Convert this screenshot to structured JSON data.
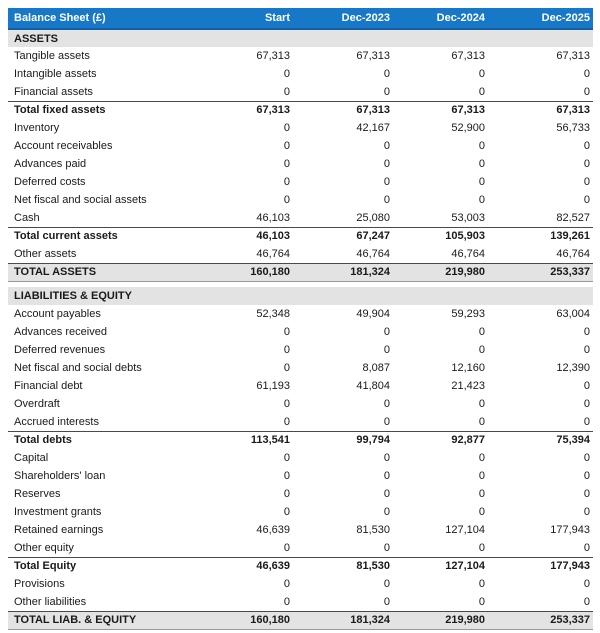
{
  "title": "Balance Sheet (£)",
  "columns": [
    "Start",
    "Dec-2023",
    "Dec-2024",
    "Dec-2025"
  ],
  "colors": {
    "header_bg": "#1878c8",
    "header_border": "#115fa5",
    "header_text": "#ffffff",
    "band_bg": "#e3e3e3",
    "text": "#1a1a1a",
    "total_border": "#4a4a4a"
  },
  "sections": [
    {
      "title": "ASSETS",
      "rows": [
        {
          "label": "Tangible assets",
          "style": "normal",
          "values": [
            "67,313",
            "67,313",
            "67,313",
            "67,313"
          ]
        },
        {
          "label": "Intangible assets",
          "style": "normal",
          "values": [
            "0",
            "0",
            "0",
            "0"
          ]
        },
        {
          "label": "Financial assets",
          "style": "normal",
          "values": [
            "0",
            "0",
            "0",
            "0"
          ]
        },
        {
          "label": "Total fixed assets",
          "style": "subtotal",
          "values": [
            "67,313",
            "67,313",
            "67,313",
            "67,313"
          ]
        },
        {
          "label": "Inventory",
          "style": "normal",
          "values": [
            "0",
            "42,167",
            "52,900",
            "56,733"
          ]
        },
        {
          "label": "Account receivables",
          "style": "normal",
          "values": [
            "0",
            "0",
            "0",
            "0"
          ]
        },
        {
          "label": "Advances paid",
          "style": "normal",
          "values": [
            "0",
            "0",
            "0",
            "0"
          ]
        },
        {
          "label": "Deferred costs",
          "style": "normal",
          "values": [
            "0",
            "0",
            "0",
            "0"
          ]
        },
        {
          "label": "Net fiscal and social assets",
          "style": "normal",
          "values": [
            "0",
            "0",
            "0",
            "0"
          ]
        },
        {
          "label": "Cash",
          "style": "normal",
          "values": [
            "46,103",
            "25,080",
            "53,003",
            "82,527"
          ]
        },
        {
          "label": "Total current assets",
          "style": "subtotal",
          "values": [
            "46,103",
            "67,247",
            "105,903",
            "139,261"
          ]
        },
        {
          "label": "Other assets",
          "style": "normal",
          "values": [
            "46,764",
            "46,764",
            "46,764",
            "46,764"
          ]
        },
        {
          "label": "TOTAL ASSETS",
          "style": "grandtotal",
          "values": [
            "160,180",
            "181,324",
            "219,980",
            "253,337"
          ]
        }
      ]
    },
    {
      "title": "LIABILITIES & EQUITY",
      "rows": [
        {
          "label": "Account payables",
          "style": "normal",
          "values": [
            "52,348",
            "49,904",
            "59,293",
            "63,004"
          ]
        },
        {
          "label": "Advances received",
          "style": "normal",
          "values": [
            "0",
            "0",
            "0",
            "0"
          ]
        },
        {
          "label": "Deferred revenues",
          "style": "normal",
          "values": [
            "0",
            "0",
            "0",
            "0"
          ]
        },
        {
          "label": "Net fiscal and social debts",
          "style": "normal",
          "values": [
            "0",
            "8,087",
            "12,160",
            "12,390"
          ]
        },
        {
          "label": "Financial debt",
          "style": "normal",
          "values": [
            "61,193",
            "41,804",
            "21,423",
            "0"
          ]
        },
        {
          "label": "Overdraft",
          "style": "normal",
          "values": [
            "0",
            "0",
            "0",
            "0"
          ]
        },
        {
          "label": "Accrued interests",
          "style": "normal",
          "values": [
            "0",
            "0",
            "0",
            "0"
          ]
        },
        {
          "label": "Total debts",
          "style": "subtotal",
          "values": [
            "113,541",
            "99,794",
            "92,877",
            "75,394"
          ]
        },
        {
          "label": "Capital",
          "style": "normal",
          "values": [
            "0",
            "0",
            "0",
            "0"
          ]
        },
        {
          "label": "Shareholders' loan",
          "style": "normal",
          "values": [
            "0",
            "0",
            "0",
            "0"
          ]
        },
        {
          "label": "Reserves",
          "style": "normal",
          "values": [
            "0",
            "0",
            "0",
            "0"
          ]
        },
        {
          "label": "Investment grants",
          "style": "normal",
          "values": [
            "0",
            "0",
            "0",
            "0"
          ]
        },
        {
          "label": "Retained earnings",
          "style": "normal",
          "values": [
            "46,639",
            "81,530",
            "127,104",
            "177,943"
          ]
        },
        {
          "label": "Other equity",
          "style": "normal",
          "values": [
            "0",
            "0",
            "0",
            "0"
          ]
        },
        {
          "label": "Total Equity",
          "style": "subtotal",
          "values": [
            "46,639",
            "81,530",
            "127,104",
            "177,943"
          ]
        },
        {
          "label": "Provisions",
          "style": "normal",
          "values": [
            "0",
            "0",
            "0",
            "0"
          ]
        },
        {
          "label": "Other liabilities",
          "style": "normal",
          "values": [
            "0",
            "0",
            "0",
            "0"
          ]
        },
        {
          "label": "TOTAL LIAB. & EQUITY",
          "style": "grandtotal",
          "values": [
            "160,180",
            "181,324",
            "219,980",
            "253,337"
          ]
        }
      ]
    }
  ]
}
